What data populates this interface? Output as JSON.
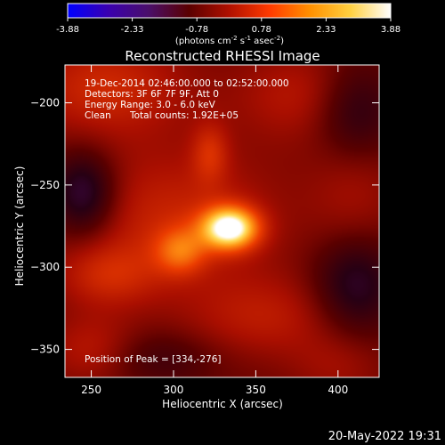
{
  "colorbar": {
    "ticks": [
      "-3.88",
      "-2.33",
      "-0.78",
      "0.78",
      "2.33",
      "3.88"
    ],
    "unit_label_parts": [
      "(photons cm",
      "-2",
      " s",
      "-1",
      " asec",
      "-2",
      ")"
    ],
    "colors": [
      "#0000ff",
      "#3a00b0",
      "#4a0f6a",
      "#5a0000",
      "#b01000",
      "#ff3a00",
      "#ff9000",
      "#ffd040",
      "#ffffff"
    ]
  },
  "chart_data": {
    "type": "heatmap",
    "title": "Reconstructed RHESSI Image",
    "xlabel": "Heliocentric X (arcsec)",
    "ylabel": "Heliocentric Y (arcsec)",
    "xlim": [
      234,
      425
    ],
    "ylim": [
      -367,
      -177
    ],
    "x_ticks": [
      250,
      300,
      350,
      400
    ],
    "y_ticks": [
      -200,
      -250,
      -300,
      -350
    ],
    "value_range": [
      -3.88,
      3.88
    ],
    "annotations": [
      "19-Dec-2014 02:46:00.000 to 02:52:00.000",
      "Detectors: 3F 6F 7F 9F, Att 0",
      "Energy Range: 3.0 - 6.0 keV",
      "Clean",
      "Total counts: 1.92E+05"
    ],
    "peak_label": "Position of Peak = [334,-276]",
    "peak": [
      334,
      -276
    ],
    "sources": [
      {
        "x": 334,
        "y": -276,
        "amp": 3.6,
        "sx": 12,
        "sy": 9
      },
      {
        "x": 304,
        "y": -290,
        "amp": 1.4,
        "sx": 11,
        "sy": 10
      },
      {
        "x": 322,
        "y": -230,
        "amp": 0.9,
        "sx": 8,
        "sy": 13
      },
      {
        "x": 258,
        "y": -190,
        "amp": 1.1,
        "sx": 35,
        "sy": 22
      },
      {
        "x": 300,
        "y": -270,
        "amp": 1.0,
        "sx": 45,
        "sy": 30
      },
      {
        "x": 260,
        "y": -305,
        "amp": 0.9,
        "sx": 22,
        "sy": 14
      },
      {
        "x": 355,
        "y": -330,
        "amp": 0.8,
        "sx": 35,
        "sy": 18
      },
      {
        "x": 380,
        "y": -195,
        "amp": 0.8,
        "sx": 30,
        "sy": 20
      },
      {
        "x": 250,
        "y": -350,
        "amp": 0.8,
        "sx": 20,
        "sy": 15
      },
      {
        "x": 410,
        "y": -250,
        "amp": 0.6,
        "sx": 20,
        "sy": 40
      },
      {
        "x": 400,
        "y": -360,
        "amp": 0.5,
        "sx": 20,
        "sy": 15
      },
      {
        "x": 245,
        "y": -255,
        "amp": -1.6,
        "sx": 14,
        "sy": 18
      },
      {
        "x": 410,
        "y": -205,
        "amp": -1.4,
        "sx": 18,
        "sy": 22
      },
      {
        "x": 410,
        "y": -310,
        "amp": -1.4,
        "sx": 18,
        "sy": 22
      },
      {
        "x": 290,
        "y": -355,
        "amp": -0.6,
        "sx": 25,
        "sy": 12
      }
    ]
  },
  "footer": {
    "timestamp": "20-May-2022 19:31"
  }
}
